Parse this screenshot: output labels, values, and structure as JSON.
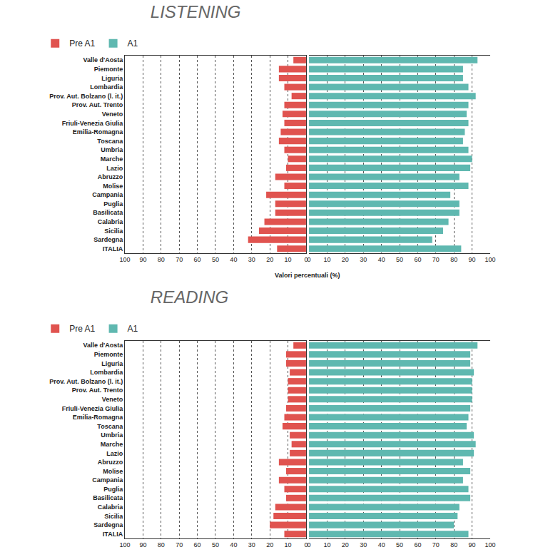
{
  "chart_data": [
    {
      "type": "bar",
      "title": "LISTENING",
      "orientation": "horizontal",
      "grid": true,
      "legend": "top left",
      "xlabel": "Valori percentuali (%)",
      "xlim": [
        0,
        100
      ],
      "xticks": [
        0,
        10,
        20,
        30,
        40,
        50,
        60,
        70,
        80,
        90,
        100
      ],
      "categories": [
        "Valle d'Aosta",
        "Piemonte",
        "Liguria",
        "Lombardia",
        "Prov. Aut. Bolzano (l. it.)",
        "Prov. Aut. Trento",
        "Veneto",
        "Friuli-Venezia Giulia",
        "Emilia-Romagna",
        "Toscana",
        "Umbria",
        "Marche",
        "Lazio",
        "Abruzzo",
        "Molise",
        "Campania",
        "Puglia",
        "Basilicata",
        "Calabria",
        "Sicilia",
        "Sardegna",
        "ITALIA"
      ],
      "series": [
        {
          "name": "Pre A1",
          "color": "#e0534f",
          "values": [
            7,
            15,
            15,
            12,
            8,
            12,
            13,
            12,
            14,
            15,
            12,
            10,
            11,
            17,
            12,
            22,
            17,
            17,
            23,
            26,
            32,
            16
          ]
        },
        {
          "name": "A1",
          "color": "#5fb8b0",
          "values": [
            93,
            85,
            85,
            88,
            92,
            88,
            87,
            88,
            86,
            85,
            88,
            90,
            89,
            83,
            88,
            78,
            83,
            83,
            77,
            74,
            68,
            84
          ]
        }
      ]
    },
    {
      "type": "bar",
      "title": "READING",
      "orientation": "horizontal",
      "grid": true,
      "legend": "top left",
      "xlim": [
        0,
        100
      ],
      "xticks": [
        0,
        10,
        20,
        30,
        40,
        50,
        60,
        70,
        80,
        90,
        100
      ],
      "categories": [
        "Valle d'Aosta",
        "Piemonte",
        "Liguria",
        "Lombardia",
        "Prov. Aut. Bolzano (l. it.)",
        "Prov. Aut. Trento",
        "Veneto",
        "Friuli-Venezia Giulia",
        "Emilia-Romagna",
        "Toscana",
        "Umbria",
        "Marche",
        "Lazio",
        "Abruzzo",
        "Molise",
        "Campania",
        "Puglia",
        "Basilicata",
        "Calabria",
        "Sicilia",
        "Sardegna",
        "ITALIA"
      ],
      "series": [
        {
          "name": "Pre A1",
          "color": "#e0534f",
          "values": [
            7,
            11,
            11,
            9,
            10,
            10,
            10,
            11,
            12,
            13,
            9,
            8,
            9,
            15,
            11,
            15,
            12,
            11,
            17,
            18,
            20,
            12
          ]
        },
        {
          "name": "A1",
          "color": "#5fb8b0",
          "values": [
            93,
            89,
            89,
            91,
            90,
            90,
            90,
            89,
            88,
            87,
            91,
            92,
            91,
            85,
            89,
            85,
            88,
            89,
            83,
            82,
            80,
            88
          ]
        }
      ]
    }
  ]
}
